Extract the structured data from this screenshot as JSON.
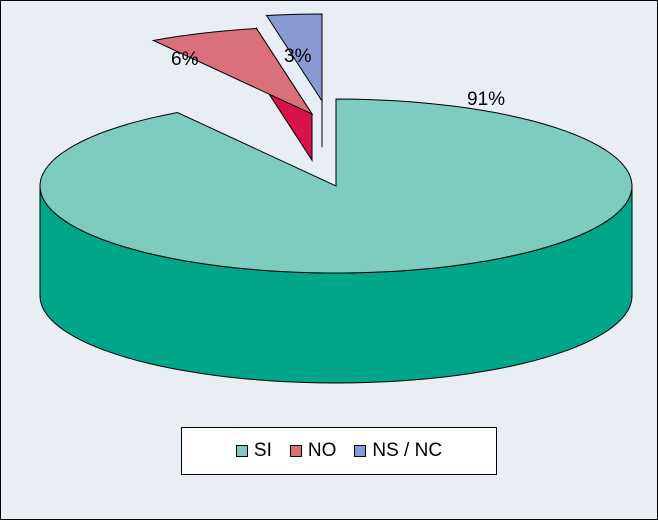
{
  "chart_data": {
    "type": "pie",
    "style": "3d-exploded",
    "categories": [
      "SI",
      "NO",
      "NS / NC"
    ],
    "values": [
      91,
      6,
      3
    ],
    "data_labels": [
      "91%",
      "6%",
      "3%"
    ],
    "colors": {
      "SI": {
        "top": "#7ecbbf",
        "side": "#00a68a"
      },
      "NO": {
        "top": "#d9707c",
        "side": "#d7134b"
      },
      "NS / NC": {
        "top": "#8899d4",
        "side": "#0054a6"
      }
    },
    "legend_position": "bottom",
    "legend": [
      "SI",
      "NO",
      "NS / NC"
    ]
  }
}
